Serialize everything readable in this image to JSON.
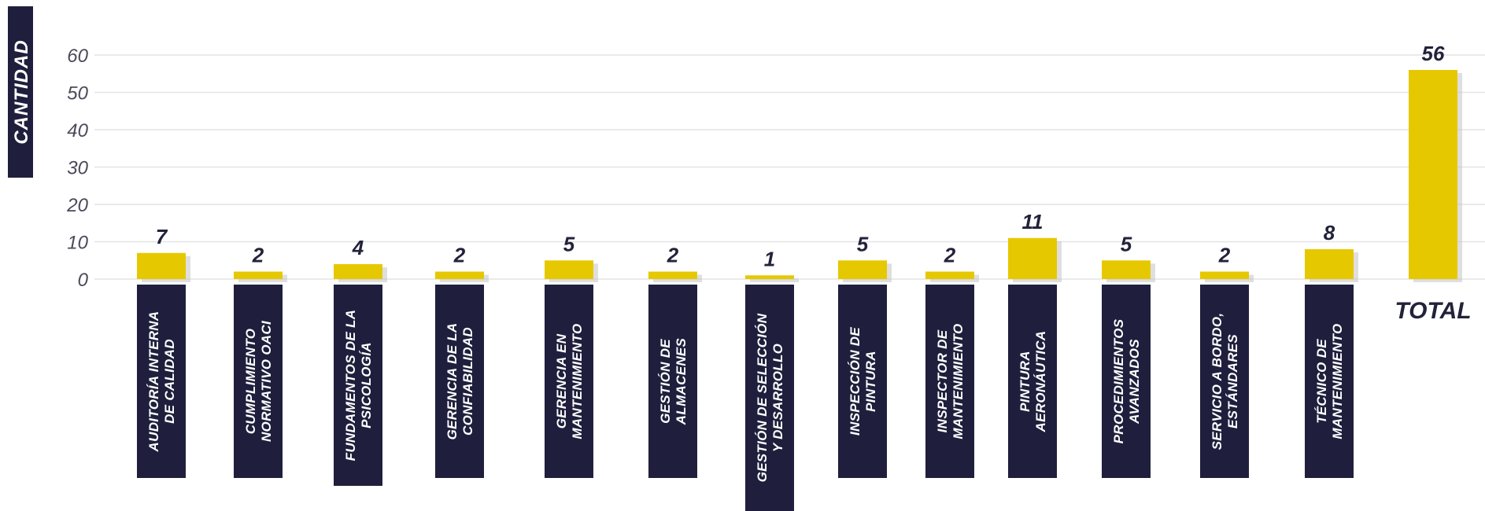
{
  "chart_data": {
    "type": "bar",
    "ylabel": "CANTIDAD",
    "ylim": [
      0,
      60
    ],
    "yticks": [
      0,
      10,
      20,
      30,
      40,
      50,
      60
    ],
    "categories": [
      [
        "AUDITORÍA INTERNA",
        "DE CALIDAD"
      ],
      [
        "CUMPLIMIENTO",
        "NORMATIVO OACI"
      ],
      [
        "FUNDAMENTOS DE LA",
        "PSICOLOGÍA"
      ],
      [
        "GERENCIA DE LA",
        "CONFIABILIDAD"
      ],
      [
        "GERENCIA EN",
        "MANTENIMIENTO"
      ],
      [
        "GESTIÓN DE",
        "ALMACENES"
      ],
      [
        "GESTIÓN DE  SELECCIÓN",
        "Y DESARROLLO"
      ],
      [
        "INSPECCIÓN DE",
        "PINTURA"
      ],
      [
        "INSPECTOR DE",
        "MANTENIMIENTO"
      ],
      [
        "PINTURA",
        "AERONÁUTICA"
      ],
      [
        "PROCEDIMIENTOS",
        "AVANZADOS"
      ],
      [
        "SERVICIO A BORDO,",
        "ESTÁNDARES"
      ],
      [
        "TÉCNICO DE",
        "MANTENIMIENTO"
      ]
    ],
    "values": [
      7,
      2,
      4,
      2,
      5,
      2,
      1,
      5,
      2,
      11,
      5,
      2,
      8
    ],
    "total": {
      "label": "TOTAL",
      "value": 56
    },
    "grid": true,
    "colors": {
      "bar": "#e6c800",
      "label_box": "#1f1f3d",
      "grid": "#e4e4e4",
      "text": "#22223a"
    }
  }
}
